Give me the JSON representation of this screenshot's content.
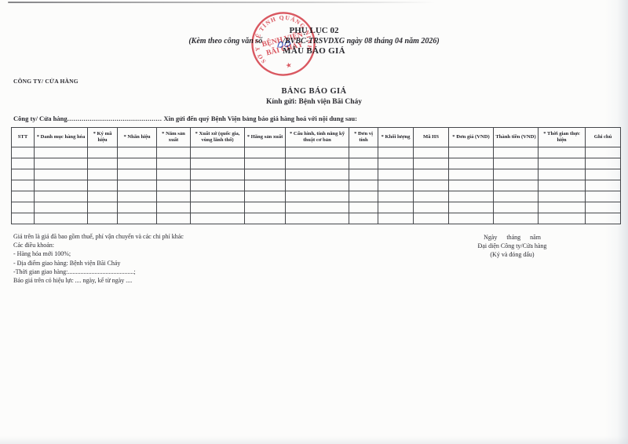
{
  "header": {
    "appendix": "PHỤ LỤC 02",
    "reference_prefix": "(Kèm theo công văn số",
    "reference_suffix": "/BVBC-TRSVDXG ngày 08 tháng 04 năm 2026)",
    "form_title": "MẪU BÁO GIÁ"
  },
  "company_label": "CÔNG TY/ CỬA HÀNG",
  "doc_title": "BẢNG BÁO GIÁ",
  "recipient": "Kính gửi: Bệnh viện Bãi Cháy",
  "intro": {
    "label": "Công ty/ Cửa hàng",
    "dots": "..............................................",
    "text": " Xin gửi đến quý Bệnh Viện bảng báo giá hàng hoá với nội dung sau:"
  },
  "table": {
    "columns": [
      "STT",
      "* Danh mục hàng hóa",
      "* Ký mã hiệu",
      "* Nhãn hiệu",
      "* Năm sản xuất",
      "* Xuất xứ (quốc gia, vùng lãnh thổ)",
      "* Hãng sản xuất",
      "* Cấu hình, tính năng kỹ thuật cơ bản",
      "* Đơn vị tính",
      "* Khối lượng",
      "Mã HS",
      "* Đơn giá (VND)",
      "Thành tiền (VND)",
      "* Thời gian thực hiện",
      "Ghi chú"
    ],
    "empty_row_count": 7
  },
  "terms": {
    "lines": [
      "Giá trên là giá đã bao gồm thuế, phí vận chuyển và các chi phí khác",
      "Các điều khoản:",
      "- Hàng hóa mới 100%;",
      "- Địa điểm giao hàng: Bệnh viện Bãi Cháy",
      "-Thời gian giao hàng:..........................................;",
      "Báo giá trên có hiệu lực .... ngày, kể từ ngày ...."
    ]
  },
  "signature": {
    "date_line": "Ngày      tháng      năm",
    "representative": "Đại diện Công ty/Cửa hàng",
    "sign_note": "(Ký và đóng dấu)"
  },
  "stamp": {
    "arc_text": "SỞ Y TẾ TỈNH QUẢNG NINH",
    "center_line1": "BỆNH VIỆN",
    "center_line2": "BÃI CHÁY",
    "star": "★"
  },
  "colors": {
    "stamp_red": "#d8424c",
    "ink_blue": "#4056c0",
    "text": "#2a2a30",
    "table_border": "#45474b"
  }
}
